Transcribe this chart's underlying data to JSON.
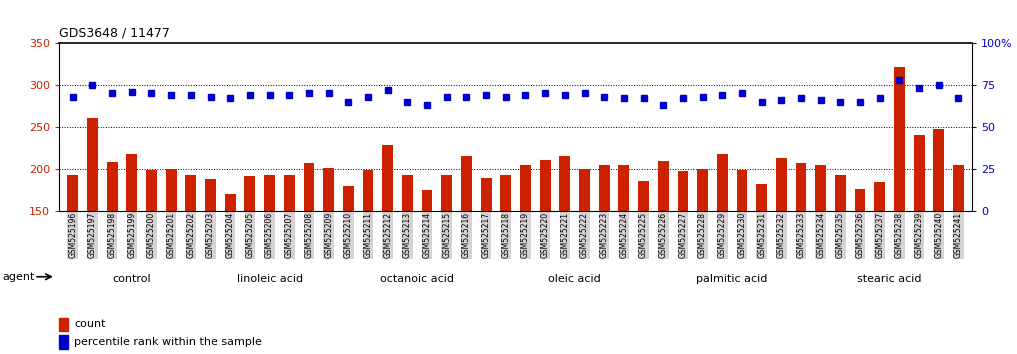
{
  "title": "GDS3648 / 11477",
  "samples": [
    "GSM525196",
    "GSM525197",
    "GSM525198",
    "GSM525199",
    "GSM525200",
    "GSM525201",
    "GSM525202",
    "GSM525203",
    "GSM525204",
    "GSM525205",
    "GSM525206",
    "GSM525207",
    "GSM525208",
    "GSM525209",
    "GSM525210",
    "GSM525211",
    "GSM525212",
    "GSM525213",
    "GSM525214",
    "GSM525215",
    "GSM525216",
    "GSM525217",
    "GSM525218",
    "GSM525219",
    "GSM525220",
    "GSM525221",
    "GSM525222",
    "GSM525223",
    "GSM525224",
    "GSM525225",
    "GSM525226",
    "GSM525227",
    "GSM525228",
    "GSM525229",
    "GSM525230",
    "GSM525231",
    "GSM525232",
    "GSM525233",
    "GSM525234",
    "GSM525235",
    "GSM525236",
    "GSM525237",
    "GSM525238",
    "GSM525239",
    "GSM525240",
    "GSM525241"
  ],
  "bar_values": [
    193,
    261,
    208,
    218,
    199,
    200,
    193,
    188,
    170,
    191,
    192,
    193,
    207,
    201,
    180,
    198,
    228,
    193,
    175,
    193,
    215,
    189,
    192,
    205,
    210,
    215,
    200,
    205,
    204,
    185,
    209,
    197,
    200,
    218,
    198,
    182,
    213,
    207,
    205,
    193,
    176,
    184,
    322,
    240,
    247,
    204
  ],
  "pct_values": [
    68,
    75,
    70,
    71,
    70,
    69,
    69,
    68,
    67,
    69,
    69,
    69,
    70,
    70,
    65,
    68,
    72,
    65,
    63,
    68,
    68,
    69,
    68,
    69,
    70,
    69,
    70,
    68,
    67,
    67,
    63,
    67,
    68,
    69,
    70,
    65,
    66,
    67,
    66,
    65,
    65,
    67,
    78,
    73,
    75,
    67
  ],
  "groups": [
    {
      "label": "control",
      "start": 0,
      "end": 7,
      "color": "#d4f0d4"
    },
    {
      "label": "linoleic acid",
      "start": 7,
      "end": 14,
      "color": "#90ee90"
    },
    {
      "label": "octanoic acid",
      "start": 14,
      "end": 22,
      "color": "#d4f0d4"
    },
    {
      "label": "oleic acid",
      "start": 22,
      "end": 30,
      "color": "#90ee90"
    },
    {
      "label": "palmitic acid",
      "start": 30,
      "end": 38,
      "color": "#d4f0d4"
    },
    {
      "label": "stearic acid",
      "start": 38,
      "end": 46,
      "color": "#90ee90"
    }
  ],
  "bar_color": "#cc2200",
  "pct_color": "#0000cc",
  "left_ylim": [
    150,
    350
  ],
  "left_yticks": [
    150,
    200,
    250,
    300,
    350
  ],
  "right_ylim": [
    0,
    100
  ],
  "right_yticks": [
    0,
    25,
    50,
    75,
    100
  ],
  "right_yticklabels": [
    "0",
    "25",
    "50",
    "75",
    "100%"
  ],
  "grid_values": [
    200,
    250,
    300
  ],
  "title_fontsize": 9,
  "tick_fontsize": 5.5,
  "group_fontsize": 8,
  "legend_fontsize": 8,
  "legend_count": "count",
  "legend_pct": "percentile rank within the sample",
  "agent_label": "agent"
}
